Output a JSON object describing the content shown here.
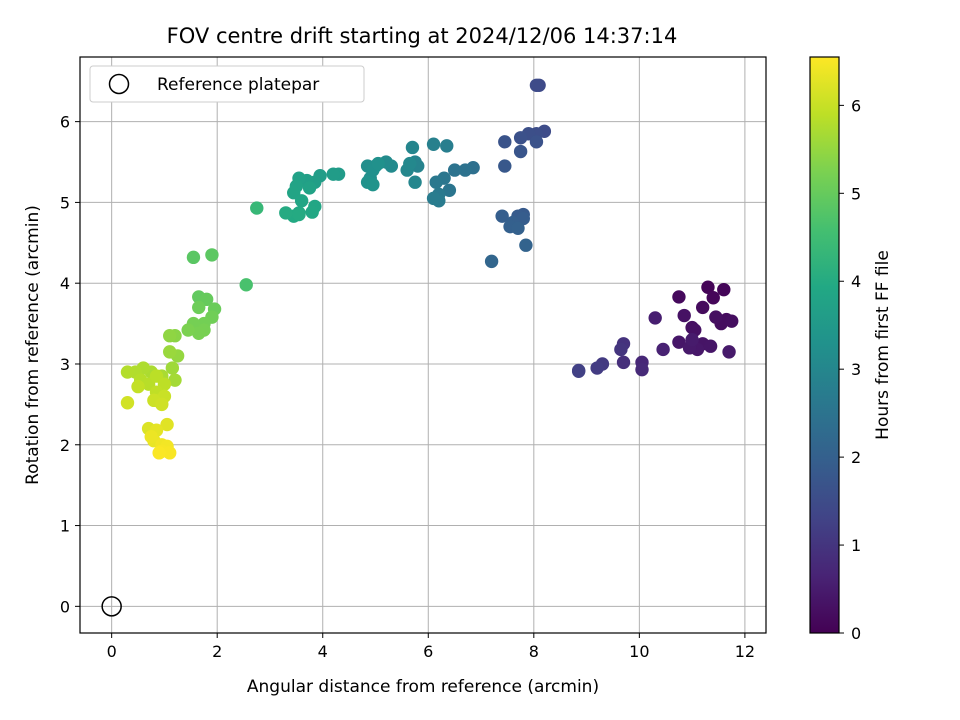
{
  "chart_data": {
    "type": "scatter",
    "title": "FOV centre drift starting at 2024/12/06 14:37:14",
    "xlabel": "Angular distance from reference (arcmin)",
    "ylabel": "Rotation from reference (arcmin)",
    "xlim": [
      -0.6,
      12.4
    ],
    "ylim": [
      -0.33,
      6.8
    ],
    "xticks": [
      0,
      2,
      4,
      6,
      8,
      10,
      12
    ],
    "yticks": [
      0,
      1,
      2,
      3,
      4,
      5,
      6
    ],
    "grid": true,
    "legend": {
      "placement": "top-left",
      "entries": [
        "Reference platepar"
      ]
    },
    "reference": {
      "label": "Reference platepar",
      "x": 0,
      "y": 0
    },
    "colorbar": {
      "label": "Hours from first FF file",
      "range": [
        0,
        6.55
      ],
      "ticks": [
        0,
        1,
        2,
        3,
        4,
        5,
        6
      ],
      "colormap": "viridis"
    },
    "points": [
      [
        11.3,
        3.95,
        0.05
      ],
      [
        11.6,
        3.92,
        0.08
      ],
      [
        11.4,
        3.82,
        0.1
      ],
      [
        10.75,
        3.83,
        0.15
      ],
      [
        11.2,
        3.7,
        0.18
      ],
      [
        11.65,
        3.55,
        0.2
      ],
      [
        11.55,
        3.5,
        0.22
      ],
      [
        11.75,
        3.53,
        0.24
      ],
      [
        11.45,
        3.58,
        0.26
      ],
      [
        11.0,
        3.45,
        0.28
      ],
      [
        11.05,
        3.42,
        0.3
      ],
      [
        10.85,
        3.6,
        0.32
      ],
      [
        11.2,
        3.25,
        0.35
      ],
      [
        11.35,
        3.22,
        0.37
      ],
      [
        10.75,
        3.27,
        0.4
      ],
      [
        11.1,
        3.18,
        0.42
      ],
      [
        10.95,
        3.2,
        0.44
      ],
      [
        11.7,
        3.15,
        0.46
      ],
      [
        11.0,
        3.3,
        0.48
      ],
      [
        10.3,
        3.57,
        0.55
      ],
      [
        10.45,
        3.18,
        0.62
      ],
      [
        10.05,
        3.02,
        0.72
      ],
      [
        10.05,
        2.93,
        0.78
      ],
      [
        9.7,
        3.02,
        0.88
      ],
      [
        9.7,
        3.25,
        0.95
      ],
      [
        9.65,
        3.18,
        1.0
      ],
      [
        9.3,
        3.0,
        1.1
      ],
      [
        9.2,
        2.95,
        1.15
      ],
      [
        8.85,
        2.92,
        1.22
      ],
      [
        8.85,
        2.91,
        1.25
      ],
      [
        8.1,
        6.45,
        1.45
      ],
      [
        8.05,
        6.45,
        1.48
      ],
      [
        8.2,
        5.88,
        1.5
      ],
      [
        8.05,
        5.85,
        1.55
      ],
      [
        7.9,
        5.85,
        1.58
      ],
      [
        7.75,
        5.8,
        1.62
      ],
      [
        8.05,
        5.75,
        1.65
      ],
      [
        7.45,
        5.75,
        1.68
      ],
      [
        7.75,
        5.63,
        1.72
      ],
      [
        7.45,
        5.45,
        1.8
      ],
      [
        7.8,
        4.85,
        1.85
      ],
      [
        7.7,
        4.83,
        1.88
      ],
      [
        7.8,
        4.8,
        1.92
      ],
      [
        7.4,
        4.83,
        1.95
      ],
      [
        7.6,
        4.75,
        1.97
      ],
      [
        7.55,
        4.7,
        2.0
      ],
      [
        7.7,
        4.68,
        2.02
      ],
      [
        7.85,
        4.47,
        2.08
      ],
      [
        7.2,
        4.27,
        2.15
      ],
      [
        6.85,
        5.43,
        2.4
      ],
      [
        6.7,
        5.4,
        2.45
      ],
      [
        6.5,
        5.4,
        2.5
      ],
      [
        6.4,
        5.15,
        2.55
      ],
      [
        6.3,
        5.3,
        2.58
      ],
      [
        6.15,
        5.25,
        2.62
      ],
      [
        6.2,
        5.1,
        2.65
      ],
      [
        6.2,
        5.02,
        2.7
      ],
      [
        6.1,
        5.05,
        2.72
      ],
      [
        6.35,
        5.7,
        2.78
      ],
      [
        6.1,
        5.72,
        2.82
      ],
      [
        5.75,
        5.5,
        2.88
      ],
      [
        5.8,
        5.45,
        2.92
      ],
      [
        5.7,
        5.68,
        2.95
      ],
      [
        5.75,
        5.25,
        2.98
      ],
      [
        5.6,
        5.4,
        3.02
      ],
      [
        5.65,
        5.48,
        3.05
      ],
      [
        5.3,
        5.45,
        3.1
      ],
      [
        5.2,
        5.5,
        3.12
      ],
      [
        5.0,
        5.45,
        3.15
      ],
      [
        4.85,
        5.45,
        3.2
      ],
      [
        4.9,
        5.3,
        3.22
      ],
      [
        4.95,
        5.4,
        3.25
      ],
      [
        5.05,
        5.48,
        3.28
      ],
      [
        4.85,
        5.25,
        3.3
      ],
      [
        4.95,
        5.22,
        3.32
      ],
      [
        4.3,
        5.35,
        3.55
      ],
      [
        4.2,
        5.35,
        3.58
      ],
      [
        3.95,
        5.33,
        3.62
      ],
      [
        3.85,
        5.25,
        3.65
      ],
      [
        3.7,
        5.27,
        3.68
      ],
      [
        3.55,
        5.3,
        3.72
      ],
      [
        3.75,
        5.18,
        3.75
      ],
      [
        3.5,
        5.2,
        3.78
      ],
      [
        3.45,
        5.12,
        3.82
      ],
      [
        3.6,
        5.02,
        3.85
      ],
      [
        3.85,
        4.95,
        3.88
      ],
      [
        3.8,
        4.88,
        3.9
      ],
      [
        3.55,
        4.87,
        3.92
      ],
      [
        3.45,
        4.83,
        3.95
      ],
      [
        3.55,
        4.85,
        3.98
      ],
      [
        3.3,
        4.87,
        4.0
      ],
      [
        2.75,
        4.93,
        4.35
      ],
      [
        2.55,
        3.98,
        4.65
      ],
      [
        1.55,
        4.32,
        4.85
      ],
      [
        1.9,
        4.35,
        4.88
      ],
      [
        1.65,
        3.83,
        4.95
      ],
      [
        1.8,
        3.8,
        5.0
      ],
      [
        1.95,
        3.68,
        5.05
      ],
      [
        1.65,
        3.7,
        5.08
      ],
      [
        1.9,
        3.58,
        5.12
      ],
      [
        1.75,
        3.5,
        5.15
      ],
      [
        1.55,
        3.5,
        5.18
      ],
      [
        1.75,
        3.42,
        5.2
      ],
      [
        1.65,
        3.38,
        5.22
      ],
      [
        1.45,
        3.42,
        5.25
      ],
      [
        1.2,
        3.35,
        5.4
      ],
      [
        1.1,
        3.35,
        5.45
      ],
      [
        1.25,
        3.1,
        5.5
      ],
      [
        1.1,
        3.15,
        5.55
      ],
      [
        1.15,
        2.95,
        5.6
      ],
      [
        1.2,
        2.8,
        5.65
      ],
      [
        0.95,
        2.85,
        5.7
      ],
      [
        0.75,
        2.9,
        5.72
      ],
      [
        0.6,
        2.95,
        5.75
      ],
      [
        0.45,
        2.9,
        5.78
      ],
      [
        0.3,
        2.9,
        5.8
      ],
      [
        0.55,
        2.8,
        5.83
      ],
      [
        0.7,
        2.75,
        5.85
      ],
      [
        0.85,
        2.85,
        5.88
      ],
      [
        1.0,
        2.75,
        5.9
      ],
      [
        0.85,
        2.65,
        5.93
      ],
      [
        0.5,
        2.72,
        5.96
      ],
      [
        0.9,
        2.55,
        5.99
      ],
      [
        1.0,
        2.6,
        6.02
      ],
      [
        0.8,
        2.55,
        6.05
      ],
      [
        0.95,
        2.5,
        6.08
      ],
      [
        0.3,
        2.52,
        6.1
      ],
      [
        0.7,
        2.2,
        6.2
      ],
      [
        1.05,
        2.25,
        6.25
      ],
      [
        0.85,
        2.18,
        6.3
      ],
      [
        0.8,
        2.05,
        6.35
      ],
      [
        0.75,
        2.1,
        6.38
      ],
      [
        0.95,
        2.0,
        6.42
      ],
      [
        1.05,
        1.98,
        6.45
      ],
      [
        0.95,
        1.92,
        6.48
      ],
      [
        1.1,
        1.9,
        6.5
      ],
      [
        0.9,
        1.9,
        6.52
      ]
    ]
  }
}
